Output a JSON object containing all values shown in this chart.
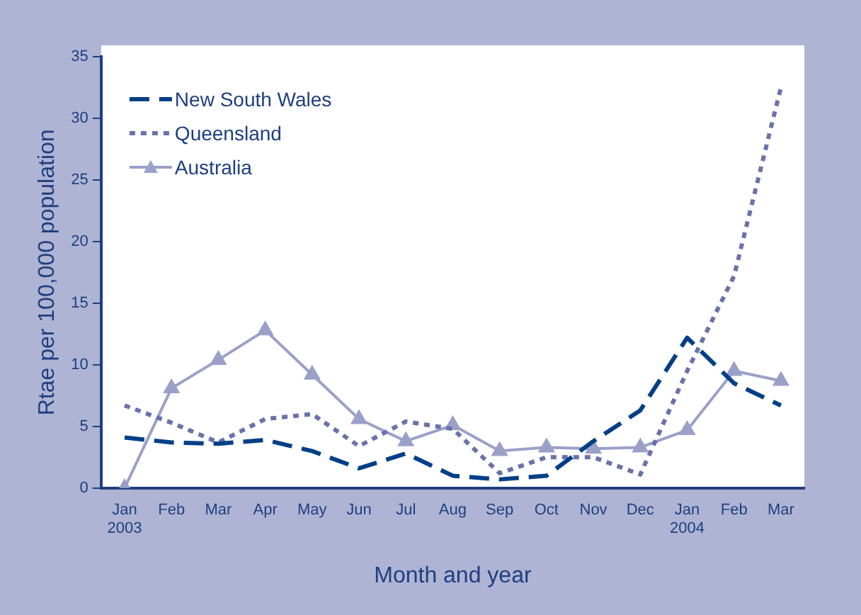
{
  "chart_data": {
    "type": "line",
    "xlabel": "Month and year",
    "ylabel": "Rtae per 100,000 population",
    "categories": [
      "Jan 2003",
      "Feb",
      "Mar",
      "Apr",
      "May",
      "Jun",
      "Jul",
      "Aug",
      "Sep",
      "Oct",
      "Nov",
      "Dec",
      "Jan 2004",
      "Feb",
      "Mar"
    ],
    "series": [
      {
        "name": "New South Wales",
        "color": "#003f87",
        "line_style": "dashed",
        "marker": "none",
        "values": [
          4.1,
          3.7,
          3.6,
          3.9,
          3.0,
          1.6,
          2.8,
          1.0,
          0.7,
          1.0,
          3.8,
          6.3,
          12.2,
          8.5,
          6.7
        ]
      },
      {
        "name": "Queensland",
        "color": "#6a72aa",
        "line_style": "dotted",
        "marker": "none",
        "values": [
          6.7,
          5.3,
          3.7,
          5.6,
          6.0,
          3.4,
          5.4,
          4.8,
          1.2,
          2.5,
          2.5,
          1.1,
          9.5,
          17.2,
          32.5
        ]
      },
      {
        "name": "Australia",
        "color": "#9aa0c8",
        "line_style": "solid",
        "marker": "triangle",
        "values": [
          0,
          8.1,
          10.4,
          12.8,
          9.2,
          5.6,
          3.8,
          5.1,
          3.0,
          3.3,
          3.2,
          3.3,
          4.7,
          9.5,
          8.7
        ]
      }
    ],
    "ylim": [
      0,
      35
    ],
    "yticks": [
      0,
      5,
      10,
      15,
      20,
      25,
      30,
      35
    ],
    "grid": false,
    "legend": "top left"
  }
}
